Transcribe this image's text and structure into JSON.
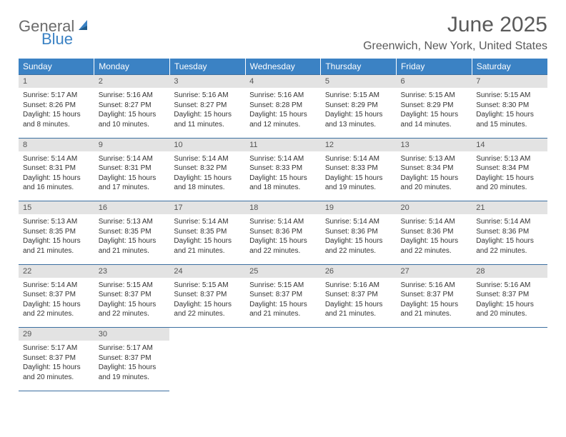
{
  "brand": {
    "text1": "General",
    "text2": "Blue"
  },
  "title": "June 2025",
  "location": "Greenwich, New York, United States",
  "colors": {
    "header_bg": "#3b82c4",
    "header_text": "#ffffff",
    "daynum_bg": "#e3e3e3",
    "border": "#3b6fa0",
    "logo_gray": "#6b6b6b",
    "logo_blue": "#3b82c4"
  },
  "weekdays": [
    "Sunday",
    "Monday",
    "Tuesday",
    "Wednesday",
    "Thursday",
    "Friday",
    "Saturday"
  ],
  "weeks": [
    [
      {
        "day": "1",
        "sunrise": "Sunrise: 5:17 AM",
        "sunset": "Sunset: 8:26 PM",
        "daylight": "Daylight: 15 hours and 8 minutes."
      },
      {
        "day": "2",
        "sunrise": "Sunrise: 5:16 AM",
        "sunset": "Sunset: 8:27 PM",
        "daylight": "Daylight: 15 hours and 10 minutes."
      },
      {
        "day": "3",
        "sunrise": "Sunrise: 5:16 AM",
        "sunset": "Sunset: 8:27 PM",
        "daylight": "Daylight: 15 hours and 11 minutes."
      },
      {
        "day": "4",
        "sunrise": "Sunrise: 5:16 AM",
        "sunset": "Sunset: 8:28 PM",
        "daylight": "Daylight: 15 hours and 12 minutes."
      },
      {
        "day": "5",
        "sunrise": "Sunrise: 5:15 AM",
        "sunset": "Sunset: 8:29 PM",
        "daylight": "Daylight: 15 hours and 13 minutes."
      },
      {
        "day": "6",
        "sunrise": "Sunrise: 5:15 AM",
        "sunset": "Sunset: 8:29 PM",
        "daylight": "Daylight: 15 hours and 14 minutes."
      },
      {
        "day": "7",
        "sunrise": "Sunrise: 5:15 AM",
        "sunset": "Sunset: 8:30 PM",
        "daylight": "Daylight: 15 hours and 15 minutes."
      }
    ],
    [
      {
        "day": "8",
        "sunrise": "Sunrise: 5:14 AM",
        "sunset": "Sunset: 8:31 PM",
        "daylight": "Daylight: 15 hours and 16 minutes."
      },
      {
        "day": "9",
        "sunrise": "Sunrise: 5:14 AM",
        "sunset": "Sunset: 8:31 PM",
        "daylight": "Daylight: 15 hours and 17 minutes."
      },
      {
        "day": "10",
        "sunrise": "Sunrise: 5:14 AM",
        "sunset": "Sunset: 8:32 PM",
        "daylight": "Daylight: 15 hours and 18 minutes."
      },
      {
        "day": "11",
        "sunrise": "Sunrise: 5:14 AM",
        "sunset": "Sunset: 8:33 PM",
        "daylight": "Daylight: 15 hours and 18 minutes."
      },
      {
        "day": "12",
        "sunrise": "Sunrise: 5:14 AM",
        "sunset": "Sunset: 8:33 PM",
        "daylight": "Daylight: 15 hours and 19 minutes."
      },
      {
        "day": "13",
        "sunrise": "Sunrise: 5:13 AM",
        "sunset": "Sunset: 8:34 PM",
        "daylight": "Daylight: 15 hours and 20 minutes."
      },
      {
        "day": "14",
        "sunrise": "Sunrise: 5:13 AM",
        "sunset": "Sunset: 8:34 PM",
        "daylight": "Daylight: 15 hours and 20 minutes."
      }
    ],
    [
      {
        "day": "15",
        "sunrise": "Sunrise: 5:13 AM",
        "sunset": "Sunset: 8:35 PM",
        "daylight": "Daylight: 15 hours and 21 minutes."
      },
      {
        "day": "16",
        "sunrise": "Sunrise: 5:13 AM",
        "sunset": "Sunset: 8:35 PM",
        "daylight": "Daylight: 15 hours and 21 minutes."
      },
      {
        "day": "17",
        "sunrise": "Sunrise: 5:14 AM",
        "sunset": "Sunset: 8:35 PM",
        "daylight": "Daylight: 15 hours and 21 minutes."
      },
      {
        "day": "18",
        "sunrise": "Sunrise: 5:14 AM",
        "sunset": "Sunset: 8:36 PM",
        "daylight": "Daylight: 15 hours and 22 minutes."
      },
      {
        "day": "19",
        "sunrise": "Sunrise: 5:14 AM",
        "sunset": "Sunset: 8:36 PM",
        "daylight": "Daylight: 15 hours and 22 minutes."
      },
      {
        "day": "20",
        "sunrise": "Sunrise: 5:14 AM",
        "sunset": "Sunset: 8:36 PM",
        "daylight": "Daylight: 15 hours and 22 minutes."
      },
      {
        "day": "21",
        "sunrise": "Sunrise: 5:14 AM",
        "sunset": "Sunset: 8:36 PM",
        "daylight": "Daylight: 15 hours and 22 minutes."
      }
    ],
    [
      {
        "day": "22",
        "sunrise": "Sunrise: 5:14 AM",
        "sunset": "Sunset: 8:37 PM",
        "daylight": "Daylight: 15 hours and 22 minutes."
      },
      {
        "day": "23",
        "sunrise": "Sunrise: 5:15 AM",
        "sunset": "Sunset: 8:37 PM",
        "daylight": "Daylight: 15 hours and 22 minutes."
      },
      {
        "day": "24",
        "sunrise": "Sunrise: 5:15 AM",
        "sunset": "Sunset: 8:37 PM",
        "daylight": "Daylight: 15 hours and 22 minutes."
      },
      {
        "day": "25",
        "sunrise": "Sunrise: 5:15 AM",
        "sunset": "Sunset: 8:37 PM",
        "daylight": "Daylight: 15 hours and 21 minutes."
      },
      {
        "day": "26",
        "sunrise": "Sunrise: 5:16 AM",
        "sunset": "Sunset: 8:37 PM",
        "daylight": "Daylight: 15 hours and 21 minutes."
      },
      {
        "day": "27",
        "sunrise": "Sunrise: 5:16 AM",
        "sunset": "Sunset: 8:37 PM",
        "daylight": "Daylight: 15 hours and 21 minutes."
      },
      {
        "day": "28",
        "sunrise": "Sunrise: 5:16 AM",
        "sunset": "Sunset: 8:37 PM",
        "daylight": "Daylight: 15 hours and 20 minutes."
      }
    ],
    [
      {
        "day": "29",
        "sunrise": "Sunrise: 5:17 AM",
        "sunset": "Sunset: 8:37 PM",
        "daylight": "Daylight: 15 hours and 20 minutes."
      },
      {
        "day": "30",
        "sunrise": "Sunrise: 5:17 AM",
        "sunset": "Sunset: 8:37 PM",
        "daylight": "Daylight: 15 hours and 19 minutes."
      },
      null,
      null,
      null,
      null,
      null
    ]
  ]
}
